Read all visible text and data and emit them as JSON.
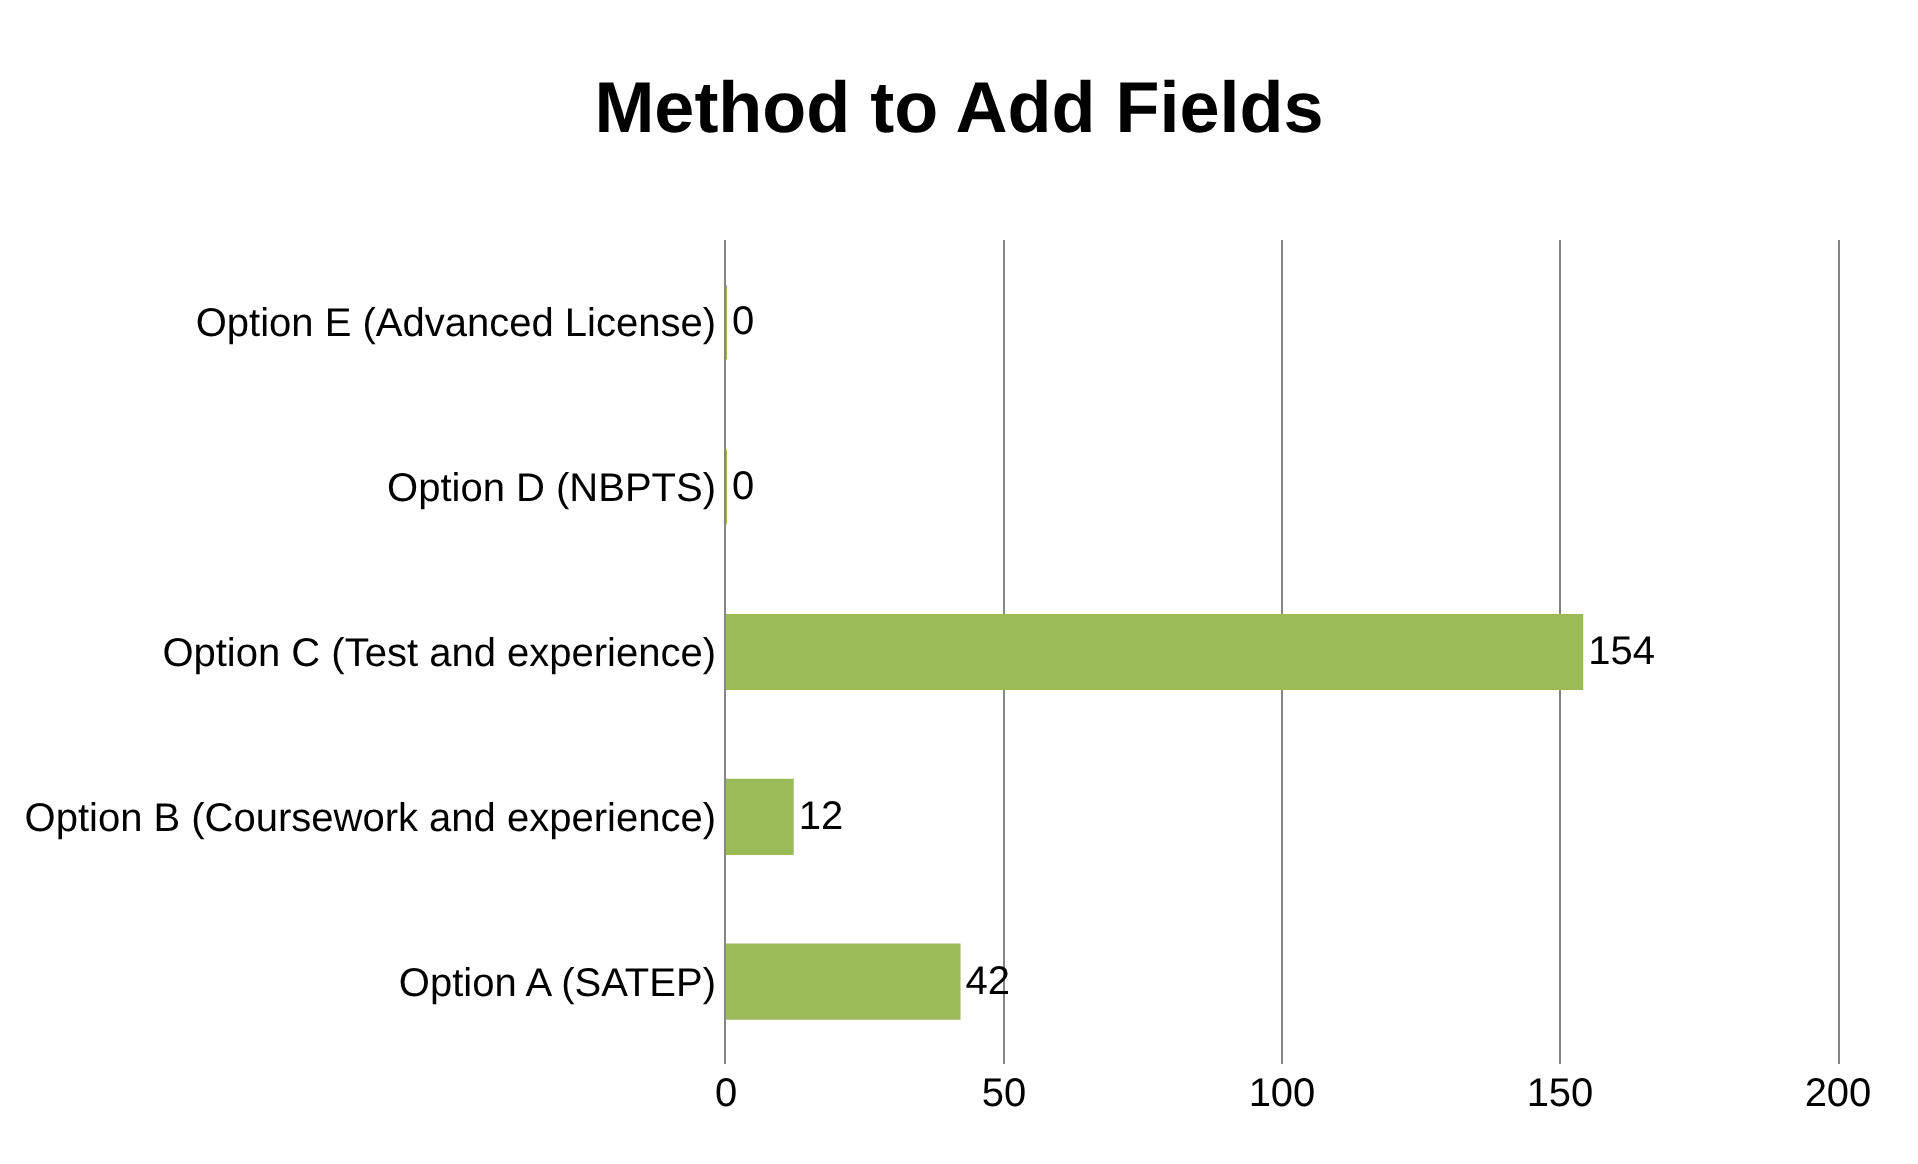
{
  "chart_data": {
    "type": "bar",
    "orientation": "horizontal",
    "title": "Method to Add Fields",
    "categories": [
      "Option E (Advanced License)",
      "Option D (NBPTS)",
      "Option C (Test and experience)",
      "Option B (Coursework and experience)",
      "Option A (SATEP)"
    ],
    "values": [
      0,
      0,
      154,
      12,
      42
    ],
    "color": "#9bbb59",
    "xlim": [
      0,
      200
    ],
    "xticks": [
      0,
      50,
      100,
      150,
      200
    ],
    "grid": "x",
    "data_labels": true
  }
}
